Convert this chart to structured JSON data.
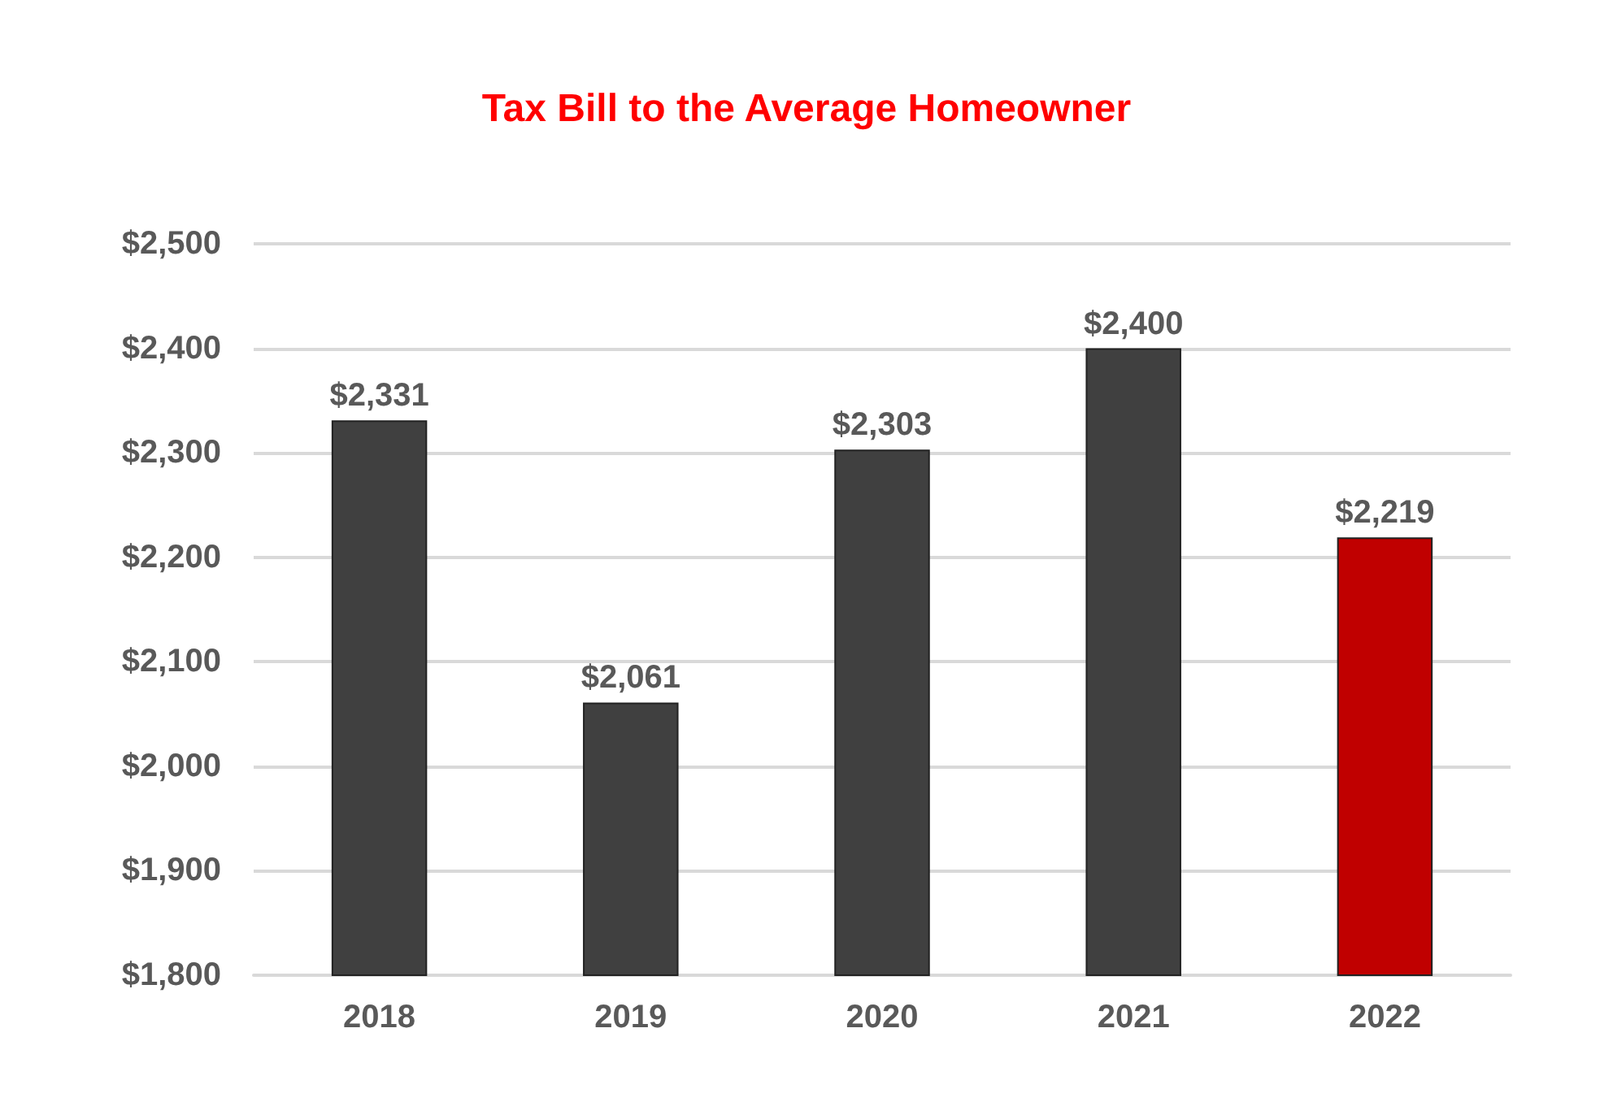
{
  "chart_data": {
    "type": "bar",
    "title": "Tax Bill to the Average Homeowner",
    "categories": [
      "2018",
      "2019",
      "2020",
      "2021",
      "2022"
    ],
    "values": [
      2331,
      2061,
      2303,
      2400,
      2219
    ],
    "colors": [
      "#404040",
      "#404040",
      "#404040",
      "#404040",
      "#c00000"
    ],
    "value_labels": [
      "$2,331",
      "$2,061",
      "$2,303",
      "$2,400",
      "$2,219"
    ],
    "ylim": [
      1800,
      2500
    ],
    "yticks": [
      {
        "value": 1800,
        "label": "$1,800"
      },
      {
        "value": 1900,
        "label": "$1,900"
      },
      {
        "value": 2000,
        "label": "$2,000"
      },
      {
        "value": 2100,
        "label": "$2,100"
      },
      {
        "value": 2200,
        "label": "$2,200"
      },
      {
        "value": 2300,
        "label": "$2,300"
      },
      {
        "value": 2400,
        "label": "$2,400"
      },
      {
        "value": 2500,
        "label": "$2,500"
      }
    ],
    "grid": "y"
  }
}
